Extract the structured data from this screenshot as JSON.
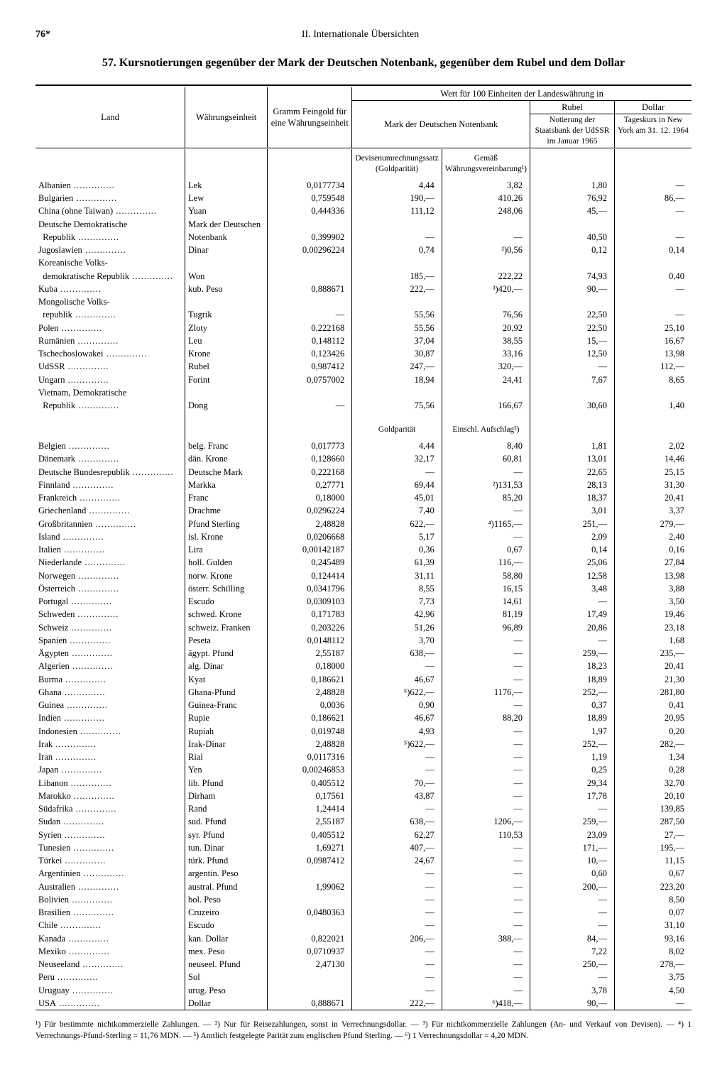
{
  "page_number": "76*",
  "section_label": "II. Internationale Übersichten",
  "title": "57. Kursnotierungen gegenüber der Mark der Deutschen Notenbank, gegenüber dem Rubel und dem Dollar",
  "headers": {
    "land": "Land",
    "unit": "Währungseinheit",
    "gold": "Gramm Feingold für eine Währungseinheit",
    "wert": "Wert für 100 Einheiten der Landeswährung in",
    "mdn": "Mark der Deutschen Notenbank",
    "rubel": "Rubel",
    "dollar": "Dollar",
    "rubel_sub": "Notierung der Staatsbank der UdSSR im Januar 1965",
    "dollar_sub": "Tageskurs in New York am 31. 12. 1964",
    "sub_a": "Devisenumrechnungssatz (Goldparität)",
    "sub_b": "Gemäß Währungsvereinbarung¹)",
    "sub_a2": "Goldparität",
    "sub_b2": "Einschl. Aufschlag³)"
  },
  "group1": [
    {
      "land": "Albanien",
      "unit": "Lek",
      "gold": "0,0177734",
      "a": "4,44",
      "b": "3,82",
      "r": "1,80",
      "d": "—"
    },
    {
      "land": "Bulgarien",
      "unit": "Lew",
      "gold": "0,759548",
      "a": "190,—",
      "b": "410,26",
      "r": "76,92",
      "d": "86,—"
    },
    {
      "land": "China (ohne Taiwan)",
      "unit": "Yuan",
      "gold": "0,444336",
      "a": "111,12",
      "b": "248,06",
      "r": "45,—",
      "d": "—"
    },
    {
      "land": "Deutsche Demokratische",
      "unit": "Mark der Deutschen",
      "gold": "",
      "a": "",
      "b": "",
      "r": "",
      "d": ""
    },
    {
      "land": "  Republik",
      "unit": "Notenbank",
      "gold": "0,399902",
      "a": "—",
      "b": "—",
      "r": "40,50",
      "d": "—"
    },
    {
      "land": "Jugoslawien",
      "unit": "Dinar",
      "gold": "0,00296224",
      "a": "0,74",
      "b": "²)0,56",
      "r": "0,12",
      "d": "0,14"
    },
    {
      "land": "Koreanische Volks-",
      "unit": "",
      "gold": "",
      "a": "",
      "b": "",
      "r": "",
      "d": ""
    },
    {
      "land": "  demokratische Republik",
      "unit": "Won",
      "gold": "",
      "a": "185,—",
      "b": "222,22",
      "r": "74,93",
      "d": "0,40"
    },
    {
      "land": "Kuba",
      "unit": "kub. Peso",
      "gold": "0,888671",
      "a": "222,—",
      "b": "³)420,—",
      "r": "90,—",
      "d": "—"
    },
    {
      "land": "Mongolische Volks-",
      "unit": "",
      "gold": "",
      "a": "",
      "b": "",
      "r": "",
      "d": ""
    },
    {
      "land": "  republik",
      "unit": "Tugrik",
      "gold": "—",
      "a": "55,56",
      "b": "76,56",
      "r": "22,50",
      "d": "—"
    },
    {
      "land": "Polen",
      "unit": "Zloty",
      "gold": "0,222168",
      "a": "55,56",
      "b": "20,92",
      "r": "22,50",
      "d": "25,10"
    },
    {
      "land": "Rumänien",
      "unit": "Leu",
      "gold": "0,148112",
      "a": "37,04",
      "b": "38,55",
      "r": "15,—",
      "d": "16,67"
    },
    {
      "land": "Tschechoslowakei",
      "unit": "Krone",
      "gold": "0,123426",
      "a": "30,87",
      "b": "33,16",
      "r": "12,50",
      "d": "13,98"
    },
    {
      "land": "UdSSR",
      "unit": "Rubel",
      "gold": "0,987412",
      "a": "247,—",
      "b": "320,—",
      "r": "—",
      "d": "112,—"
    },
    {
      "land": "Ungarn",
      "unit": "Forint",
      "gold": "0,0757002",
      "a": "18,94",
      "b": "24,41",
      "r": "7,67",
      "d": "8,65"
    },
    {
      "land": "Vietnam, Demokratische",
      "unit": "",
      "gold": "",
      "a": "",
      "b": "",
      "r": "",
      "d": ""
    },
    {
      "land": "  Republik",
      "unit": "Dong",
      "gold": "—",
      "a": "75,56",
      "b": "166,67",
      "r": "30,60",
      "d": "1,40"
    }
  ],
  "group2": [
    {
      "land": "Belgien",
      "unit": "belg. Franc",
      "gold": "0,017773",
      "a": "4,44",
      "b": "8,40",
      "r": "1,81",
      "d": "2,02"
    },
    {
      "land": "Dänemark",
      "unit": "dän. Krone",
      "gold": "0,128660",
      "a": "32,17",
      "b": "60,81",
      "r": "13,01",
      "d": "14,46"
    },
    {
      "land": "Deutsche Bundesrepublik",
      "unit": "Deutsche Mark",
      "gold": "0,222168",
      "a": "—",
      "b": "—",
      "r": "22,65",
      "d": "25,15"
    },
    {
      "land": "Finnland",
      "unit": "Markka",
      "gold": "0,27771",
      "a": "69,44",
      "b": "²)131,53",
      "r": "28,13",
      "d": "31,30"
    },
    {
      "land": "Frankreich",
      "unit": "Franc",
      "gold": "0,18000",
      "a": "45,01",
      "b": "85,20",
      "r": "18,37",
      "d": "20,41"
    },
    {
      "land": "Griechenland",
      "unit": "Drachme",
      "gold": "0,0296224",
      "a": "7,40",
      "b": "—",
      "r": "3,01",
      "d": "3,37"
    },
    {
      "land": "Großbritannien",
      "unit": "Pfund Sterling",
      "gold": "2,48828",
      "a": "622,—",
      "b": "⁴)1165,—",
      "r": "251,—",
      "d": "279,—"
    },
    {
      "land": "Island",
      "unit": "isl. Krone",
      "gold": "0,0206668",
      "a": "5,17",
      "b": "—",
      "r": "2,09",
      "d": "2,40"
    },
    {
      "land": "Italien",
      "unit": "Lira",
      "gold": "0,00142187",
      "a": "0,36",
      "b": "0,67",
      "r": "0,14",
      "d": "0,16"
    },
    {
      "land": "Niederlande",
      "unit": "holl. Gulden",
      "gold": "0,245489",
      "a": "61,39",
      "b": "116,—",
      "r": "25,06",
      "d": "27,84"
    },
    {
      "land": "Norwegen",
      "unit": "norw. Krone",
      "gold": "0,124414",
      "a": "31,11",
      "b": "58,80",
      "r": "12,58",
      "d": "13,98"
    },
    {
      "land": "Österreich",
      "unit": "österr. Schilling",
      "gold": "0,0341796",
      "a": "8,55",
      "b": "16,15",
      "r": "3,48",
      "d": "3,88"
    },
    {
      "land": "Portugal",
      "unit": "Escudo",
      "gold": "0,0309103",
      "a": "7,73",
      "b": "14,61",
      "r": "—",
      "d": "3,50"
    },
    {
      "land": "Schweden",
      "unit": "schwed. Krone",
      "gold": "0,171783",
      "a": "42,96",
      "b": "81,19",
      "r": "17,49",
      "d": "19,46"
    },
    {
      "land": "Schweiz",
      "unit": "schweiz. Franken",
      "gold": "0,203226",
      "a": "51,26",
      "b": "96,89",
      "r": "20,86",
      "d": "23,18"
    },
    {
      "land": "Spanien",
      "unit": "Peseta",
      "gold": "0,0148112",
      "a": "3,70",
      "b": "—",
      "r": "—",
      "d": "1,68"
    },
    {
      "land": "Ägypten",
      "unit": "ägypt. Pfund",
      "gold": "2,55187",
      "a": "638,—",
      "b": "—",
      "r": "259,—",
      "d": "235,—"
    },
    {
      "land": "Algerien",
      "unit": "alg. Dinar",
      "gold": "0,18000",
      "a": "—",
      "b": "—",
      "r": "18,23",
      "d": "20,41"
    },
    {
      "land": "Burma",
      "unit": "Kyat",
      "gold": "0,186621",
      "a": "46,67",
      "b": "—",
      "r": "18,89",
      "d": "21,30"
    },
    {
      "land": "Ghana",
      "unit": "Ghana-Pfund",
      "gold": "2,48828",
      "a": "⁵)622,—",
      "b": "1176,—",
      "r": "252,—",
      "d": "281,80"
    },
    {
      "land": "Guinea",
      "unit": "Guinea-Franc",
      "gold": "0,0036",
      "a": "0,90",
      "b": "—",
      "r": "0,37",
      "d": "0,41"
    },
    {
      "land": "Indien",
      "unit": "Rupie",
      "gold": "0,186621",
      "a": "46,67",
      "b": "88,20",
      "r": "18,89",
      "d": "20,95"
    },
    {
      "land": "Indonesien",
      "unit": "Rupiah",
      "gold": "0,019748",
      "a": "4,93",
      "b": "—",
      "r": "1,97",
      "d": "0,20"
    },
    {
      "land": "Irak",
      "unit": "Irak-Dinar",
      "gold": "2,48828",
      "a": "⁵)622,—",
      "b": "—",
      "r": "252,—",
      "d": "282,—"
    },
    {
      "land": "Iran",
      "unit": "Rial",
      "gold": "0,0117316",
      "a": "—",
      "b": "—",
      "r": "1,19",
      "d": "1,34"
    },
    {
      "land": "Japan",
      "unit": "Yen",
      "gold": "0,00246853",
      "a": "—",
      "b": "—",
      "r": "0,25",
      "d": "0,28"
    },
    {
      "land": "Libanon",
      "unit": "lib. Pfund",
      "gold": "0,405512",
      "a": "70,—",
      "b": "—",
      "r": "29,34",
      "d": "32,70"
    },
    {
      "land": "Marokko",
      "unit": "Dirham",
      "gold": "0,17561",
      "a": "43,87",
      "b": "—",
      "r": "17,78",
      "d": "20,10"
    },
    {
      "land": "Südafrika",
      "unit": "Rand",
      "gold": "1,24414",
      "a": "—",
      "b": "—",
      "r": "—",
      "d": "139,85"
    },
    {
      "land": "Sudan",
      "unit": "sud. Pfund",
      "gold": "2,55187",
      "a": "638,—",
      "b": "1206,—",
      "r": "259,—",
      "d": "287,50"
    },
    {
      "land": "Syrien",
      "unit": "syr. Pfund",
      "gold": "0,405512",
      "a": "62,27",
      "b": "110,53",
      "r": "23,09",
      "d": "27,—"
    },
    {
      "land": "Tunesien",
      "unit": "tun. Dinar",
      "gold": "1,69271",
      "a": "407,—",
      "b": "—",
      "r": "171,—",
      "d": "195,—"
    },
    {
      "land": "Türkei",
      "unit": "türk. Pfund",
      "gold": "0,0987412",
      "a": "24,67",
      "b": "—",
      "r": "10,—",
      "d": "11,15"
    },
    {
      "land": "Argentinien",
      "unit": "argentin. Peso",
      "gold": "",
      "a": "—",
      "b": "—",
      "r": "0,60",
      "d": "0,67"
    },
    {
      "land": "Australien",
      "unit": "austral. Pfund",
      "gold": "1,99062",
      "a": "—",
      "b": "—",
      "r": "200,—",
      "d": "223,20"
    },
    {
      "land": "Bolivien",
      "unit": "bol. Peso",
      "gold": "",
      "a": "—",
      "b": "—",
      "r": "—",
      "d": "8,50"
    },
    {
      "land": "Brasilien",
      "unit": "Cruzeiro",
      "gold": "0,0480363",
      "a": "—",
      "b": "—",
      "r": "—",
      "d": "0,07"
    },
    {
      "land": "Chile",
      "unit": "Escudo",
      "gold": "",
      "a": "—",
      "b": "—",
      "r": "—",
      "d": "31,10"
    },
    {
      "land": "Kanada",
      "unit": "kan. Dollar",
      "gold": "0,822021",
      "a": "206,—",
      "b": "388,—",
      "r": "84,—",
      "d": "93,16"
    },
    {
      "land": "Mexiko",
      "unit": "mex. Peso",
      "gold": "0,0710937",
      "a": "—",
      "b": "—",
      "r": "7,22",
      "d": "8,02"
    },
    {
      "land": "Neuseeland",
      "unit": "neuseel. Pfund",
      "gold": "2,47130",
      "a": "—",
      "b": "—",
      "r": "250,—",
      "d": "278,—"
    },
    {
      "land": "Peru",
      "unit": "Sol",
      "gold": "",
      "a": "—",
      "b": "—",
      "r": "—",
      "d": "3,75"
    },
    {
      "land": "Uruguay",
      "unit": "urug. Peso",
      "gold": "",
      "a": "—",
      "b": "—",
      "r": "3,78",
      "d": "4,50"
    },
    {
      "land": "USA",
      "unit": "Dollar",
      "gold": "0,888671",
      "a": "222,—",
      "b": "⁶)418,—",
      "r": "90,—",
      "d": "—"
    }
  ],
  "footnotes": "¹) Für bestimmte nichtkommerzielle Zahlungen. — ²) Nur für Reisezahlungen, sonst in Verrechnungsdollar. — ³) Für nichtkommerzielle Zahlungen (An- und Verkauf von Devisen). — ⁴) 1 Verrechnungs-Pfund-Sterling = 11,76 MDN. — ⁵) Amtlich festgelegte Parität zum englischen Pfund Sterling. — ⁶) 1 Verrechnungsdollar = 4,20 MDN."
}
